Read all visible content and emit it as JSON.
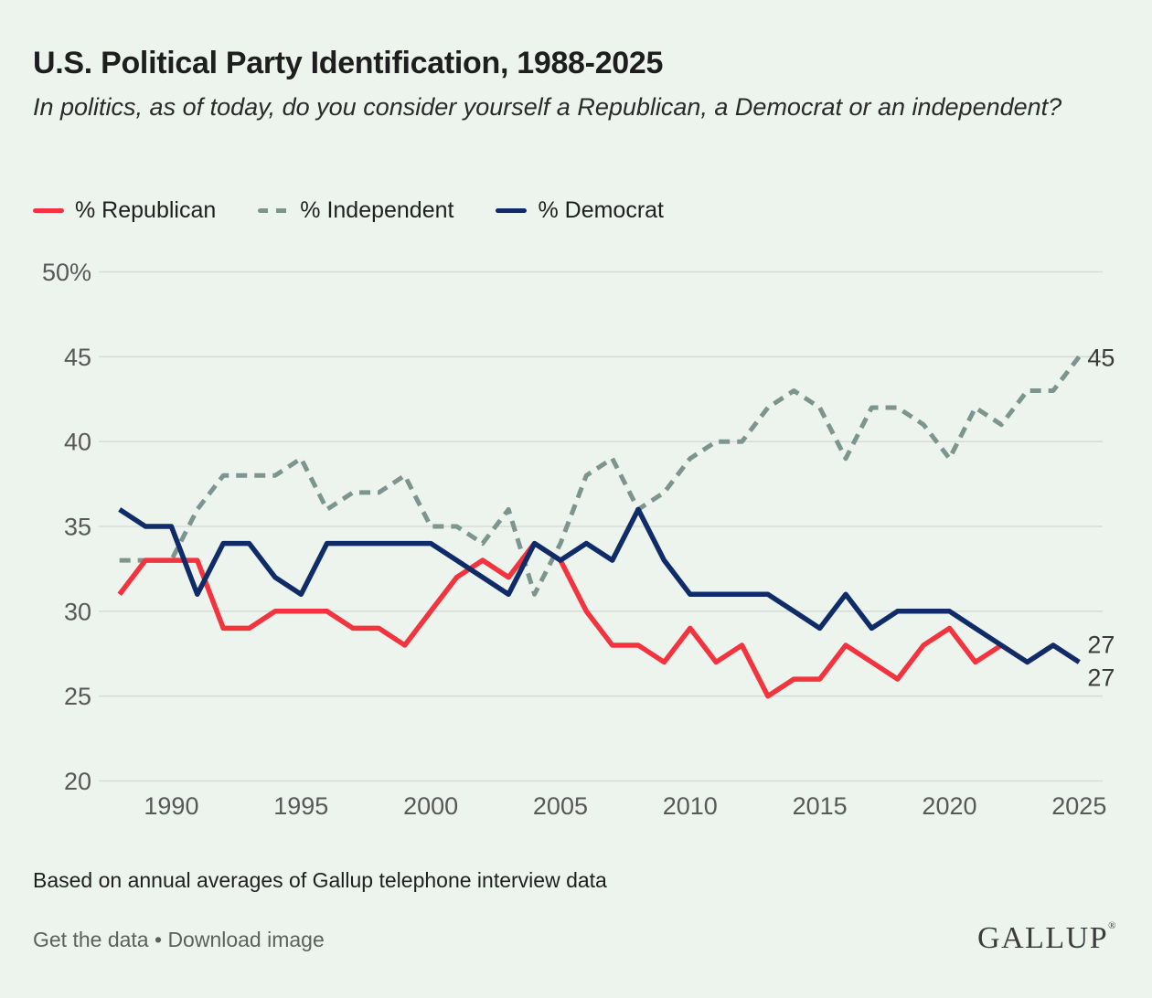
{
  "header": {
    "title": "U.S. Political Party Identification, 1988-2025",
    "subtitle": "In politics, as of today, do you consider yourself a Republican, a Democrat or an independent?"
  },
  "legend": {
    "republican": "% Republican",
    "independent": "% Independent",
    "democrat": "% Democrat"
  },
  "colors": {
    "background": "#edf4ee",
    "republican": "#f3333e",
    "independent": "#7c968f",
    "democrat": "#102c68",
    "gridline": "#d7dcd8",
    "axis_label": "#585858",
    "end_label": "#3a3a3a"
  },
  "chart_data": {
    "type": "line",
    "x_start": 1988,
    "x_end": 2025,
    "x": [
      1988,
      1989,
      1990,
      1991,
      1992,
      1993,
      1994,
      1995,
      1996,
      1997,
      1998,
      1999,
      2000,
      2001,
      2002,
      2003,
      2004,
      2005,
      2006,
      2007,
      2008,
      2009,
      2010,
      2011,
      2012,
      2013,
      2014,
      2015,
      2016,
      2017,
      2018,
      2019,
      2020,
      2021,
      2022,
      2023,
      2024,
      2025
    ],
    "series": [
      {
        "id": "independent",
        "name": "% Independent",
        "dashed": true,
        "values": [
          33,
          33,
          33,
          36,
          38,
          38,
          38,
          39,
          36,
          37,
          37,
          38,
          35,
          35,
          34,
          36,
          31,
          34,
          38,
          39,
          36,
          37,
          39,
          40,
          40,
          42,
          43,
          42,
          39,
          42,
          42,
          41,
          39,
          42,
          41,
          43,
          43,
          45
        ]
      },
      {
        "id": "republican",
        "name": "% Republican",
        "dashed": false,
        "values": [
          31,
          33,
          33,
          33,
          29,
          29,
          30,
          30,
          30,
          29,
          29,
          28,
          30,
          32,
          33,
          32,
          34,
          33,
          30,
          28,
          28,
          27,
          29,
          27,
          28,
          25,
          26,
          26,
          28,
          27,
          26,
          28,
          29,
          27,
          28,
          27,
          28,
          27
        ]
      },
      {
        "id": "democrat",
        "name": "% Democrat",
        "dashed": false,
        "values": [
          36,
          35,
          35,
          31,
          34,
          34,
          32,
          31,
          34,
          34,
          34,
          34,
          34,
          33,
          32,
          31,
          34,
          33,
          34,
          33,
          36,
          33,
          31,
          31,
          31,
          31,
          30,
          29,
          31,
          29,
          30,
          30,
          30,
          29,
          28,
          27,
          28,
          27
        ]
      }
    ],
    "ylim": [
      20,
      50
    ],
    "yticks": [
      {
        "v": 50,
        "label": "50%"
      },
      {
        "v": 45,
        "label": "45"
      },
      {
        "v": 40,
        "label": "40"
      },
      {
        "v": 35,
        "label": "35"
      },
      {
        "v": 30,
        "label": "30"
      },
      {
        "v": 25,
        "label": "25"
      },
      {
        "v": 20,
        "label": "20"
      }
    ],
    "xticks": [
      {
        "v": 1990,
        "label": "1990"
      },
      {
        "v": 1995,
        "label": "1995"
      },
      {
        "v": 2000,
        "label": "2000"
      },
      {
        "v": 2005,
        "label": "2005"
      },
      {
        "v": 2010,
        "label": "2010"
      },
      {
        "v": 2015,
        "label": "2015"
      },
      {
        "v": 2020,
        "label": "2020"
      },
      {
        "v": 2025,
        "label": "2025"
      }
    ],
    "end_labels": [
      {
        "series": "independent",
        "text": "45",
        "value": 45
      },
      {
        "series": "republican",
        "text": "27",
        "value": 27
      },
      {
        "series": "democrat",
        "text": "27",
        "value": 27
      }
    ],
    "grid": true,
    "legend_position": "top-left"
  },
  "footer": {
    "note": "Based on annual averages of Gallup telephone interview data",
    "link_get_data": "Get the data",
    "separator": "•",
    "link_download": "Download image",
    "logo": "GALLUP",
    "logo_mark": "®"
  }
}
